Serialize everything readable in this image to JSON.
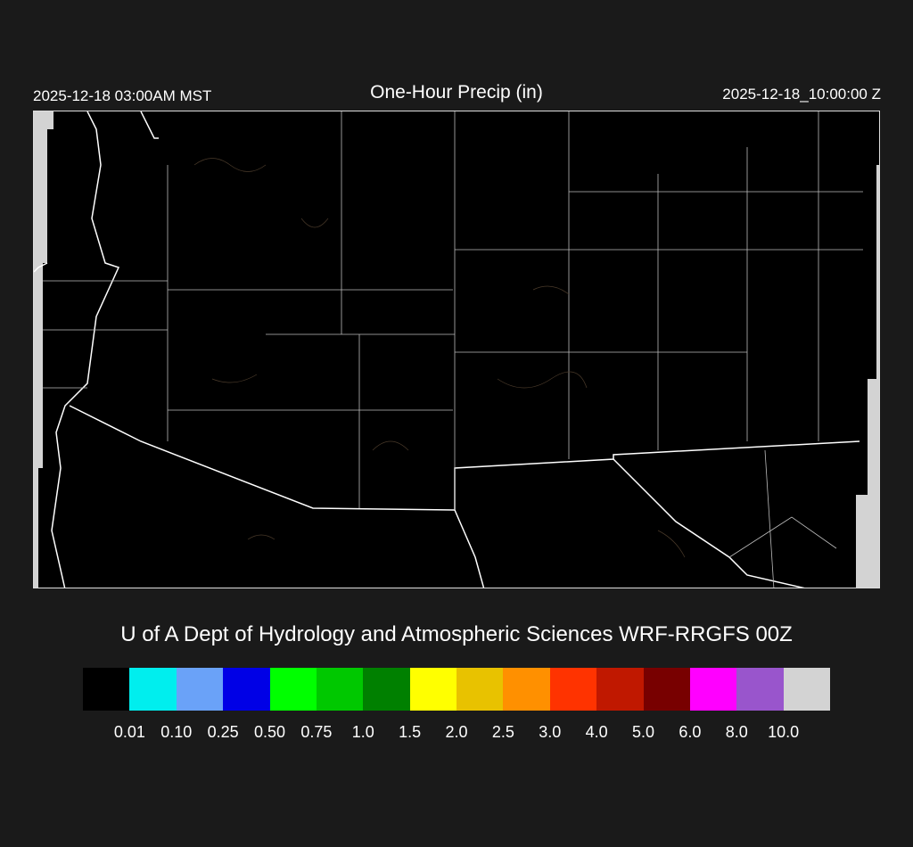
{
  "header": {
    "local_time": "2025-12-18 03:00AM MST",
    "title": "One-Hour Precip (in)",
    "utc_time": "2025-12-18_10:00:00 Z"
  },
  "map": {
    "background_color": "#000000",
    "border_color": "#ffffff",
    "terrain_contour_color": "#4a3a2a",
    "no_data_color": "#d3d3d3",
    "precip_present": false
  },
  "credit": "U of A Dept of Hydrology and Atmospheric Sciences WRF-RRGFS 00Z",
  "colorbar": {
    "colors": [
      "#000000",
      "#00eeee",
      "#6aa2f8",
      "#0000e6",
      "#00ff00",
      "#00c800",
      "#008000",
      "#ffff00",
      "#e8c200",
      "#ff9000",
      "#ff3300",
      "#c01800",
      "#780000",
      "#ff00ff",
      "#9955cc",
      "#d3d3d3"
    ],
    "labels": [
      "0.01",
      "0.10",
      "0.25",
      "0.50",
      "0.75",
      "1.0",
      "1.5",
      "2.0",
      "2.5",
      "3.0",
      "4.0",
      "5.0",
      "6.0",
      "8.0",
      "10.0"
    ]
  }
}
